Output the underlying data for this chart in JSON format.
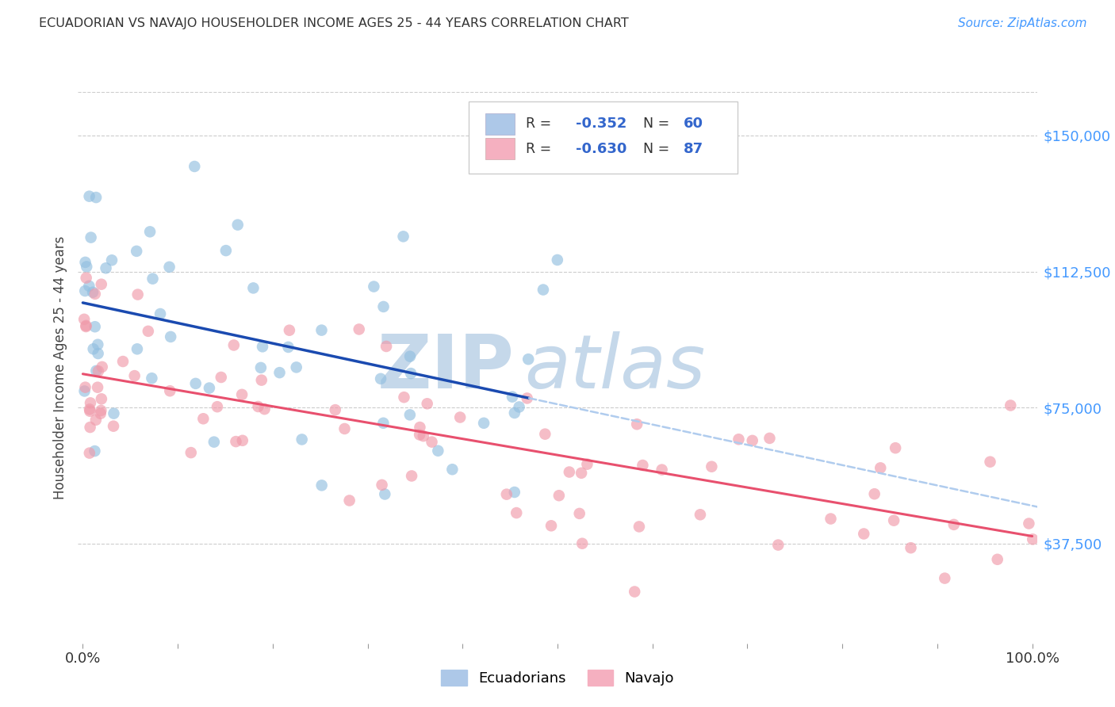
{
  "title": "ECUADORIAN VS NAVAJO HOUSEHOLDER INCOME AGES 25 - 44 YEARS CORRELATION CHART",
  "source": "Source: ZipAtlas.com",
  "ylabel": "Householder Income Ages 25 - 44 years",
  "ytick_labels": [
    "$37,500",
    "$75,000",
    "$112,500",
    "$150,000"
  ],
  "ytick_values": [
    37500,
    75000,
    112500,
    150000
  ],
  "ylim": [
    10000,
    162000
  ],
  "xlim": [
    -0.005,
    1.005
  ],
  "r_blue": -0.352,
  "n_blue": 60,
  "r_pink": -0.63,
  "n_pink": 87,
  "blue_scatter_color": "#92bfe0",
  "pink_scatter_color": "#f09aaa",
  "blue_line_color": "#1a4ab0",
  "pink_line_color": "#e8506e",
  "blue_dashed_color": "#b0ccee",
  "watermark_zip": "ZIP",
  "watermark_atlas": "atlas",
  "watermark_color": "#c5d8ea",
  "background_color": "#ffffff",
  "grid_color": "#cccccc",
  "legend_blue_fill": "#adc8e8",
  "legend_pink_fill": "#f5b0c0",
  "title_color": "#333333",
  "source_color": "#4499ff",
  "yaxis_tick_color": "#4499ff",
  "legend_text_color": "#333333",
  "legend_value_color": "#3366cc",
  "bottom_legend_blue": "#adc8e8",
  "bottom_legend_pink": "#f5b0c0"
}
